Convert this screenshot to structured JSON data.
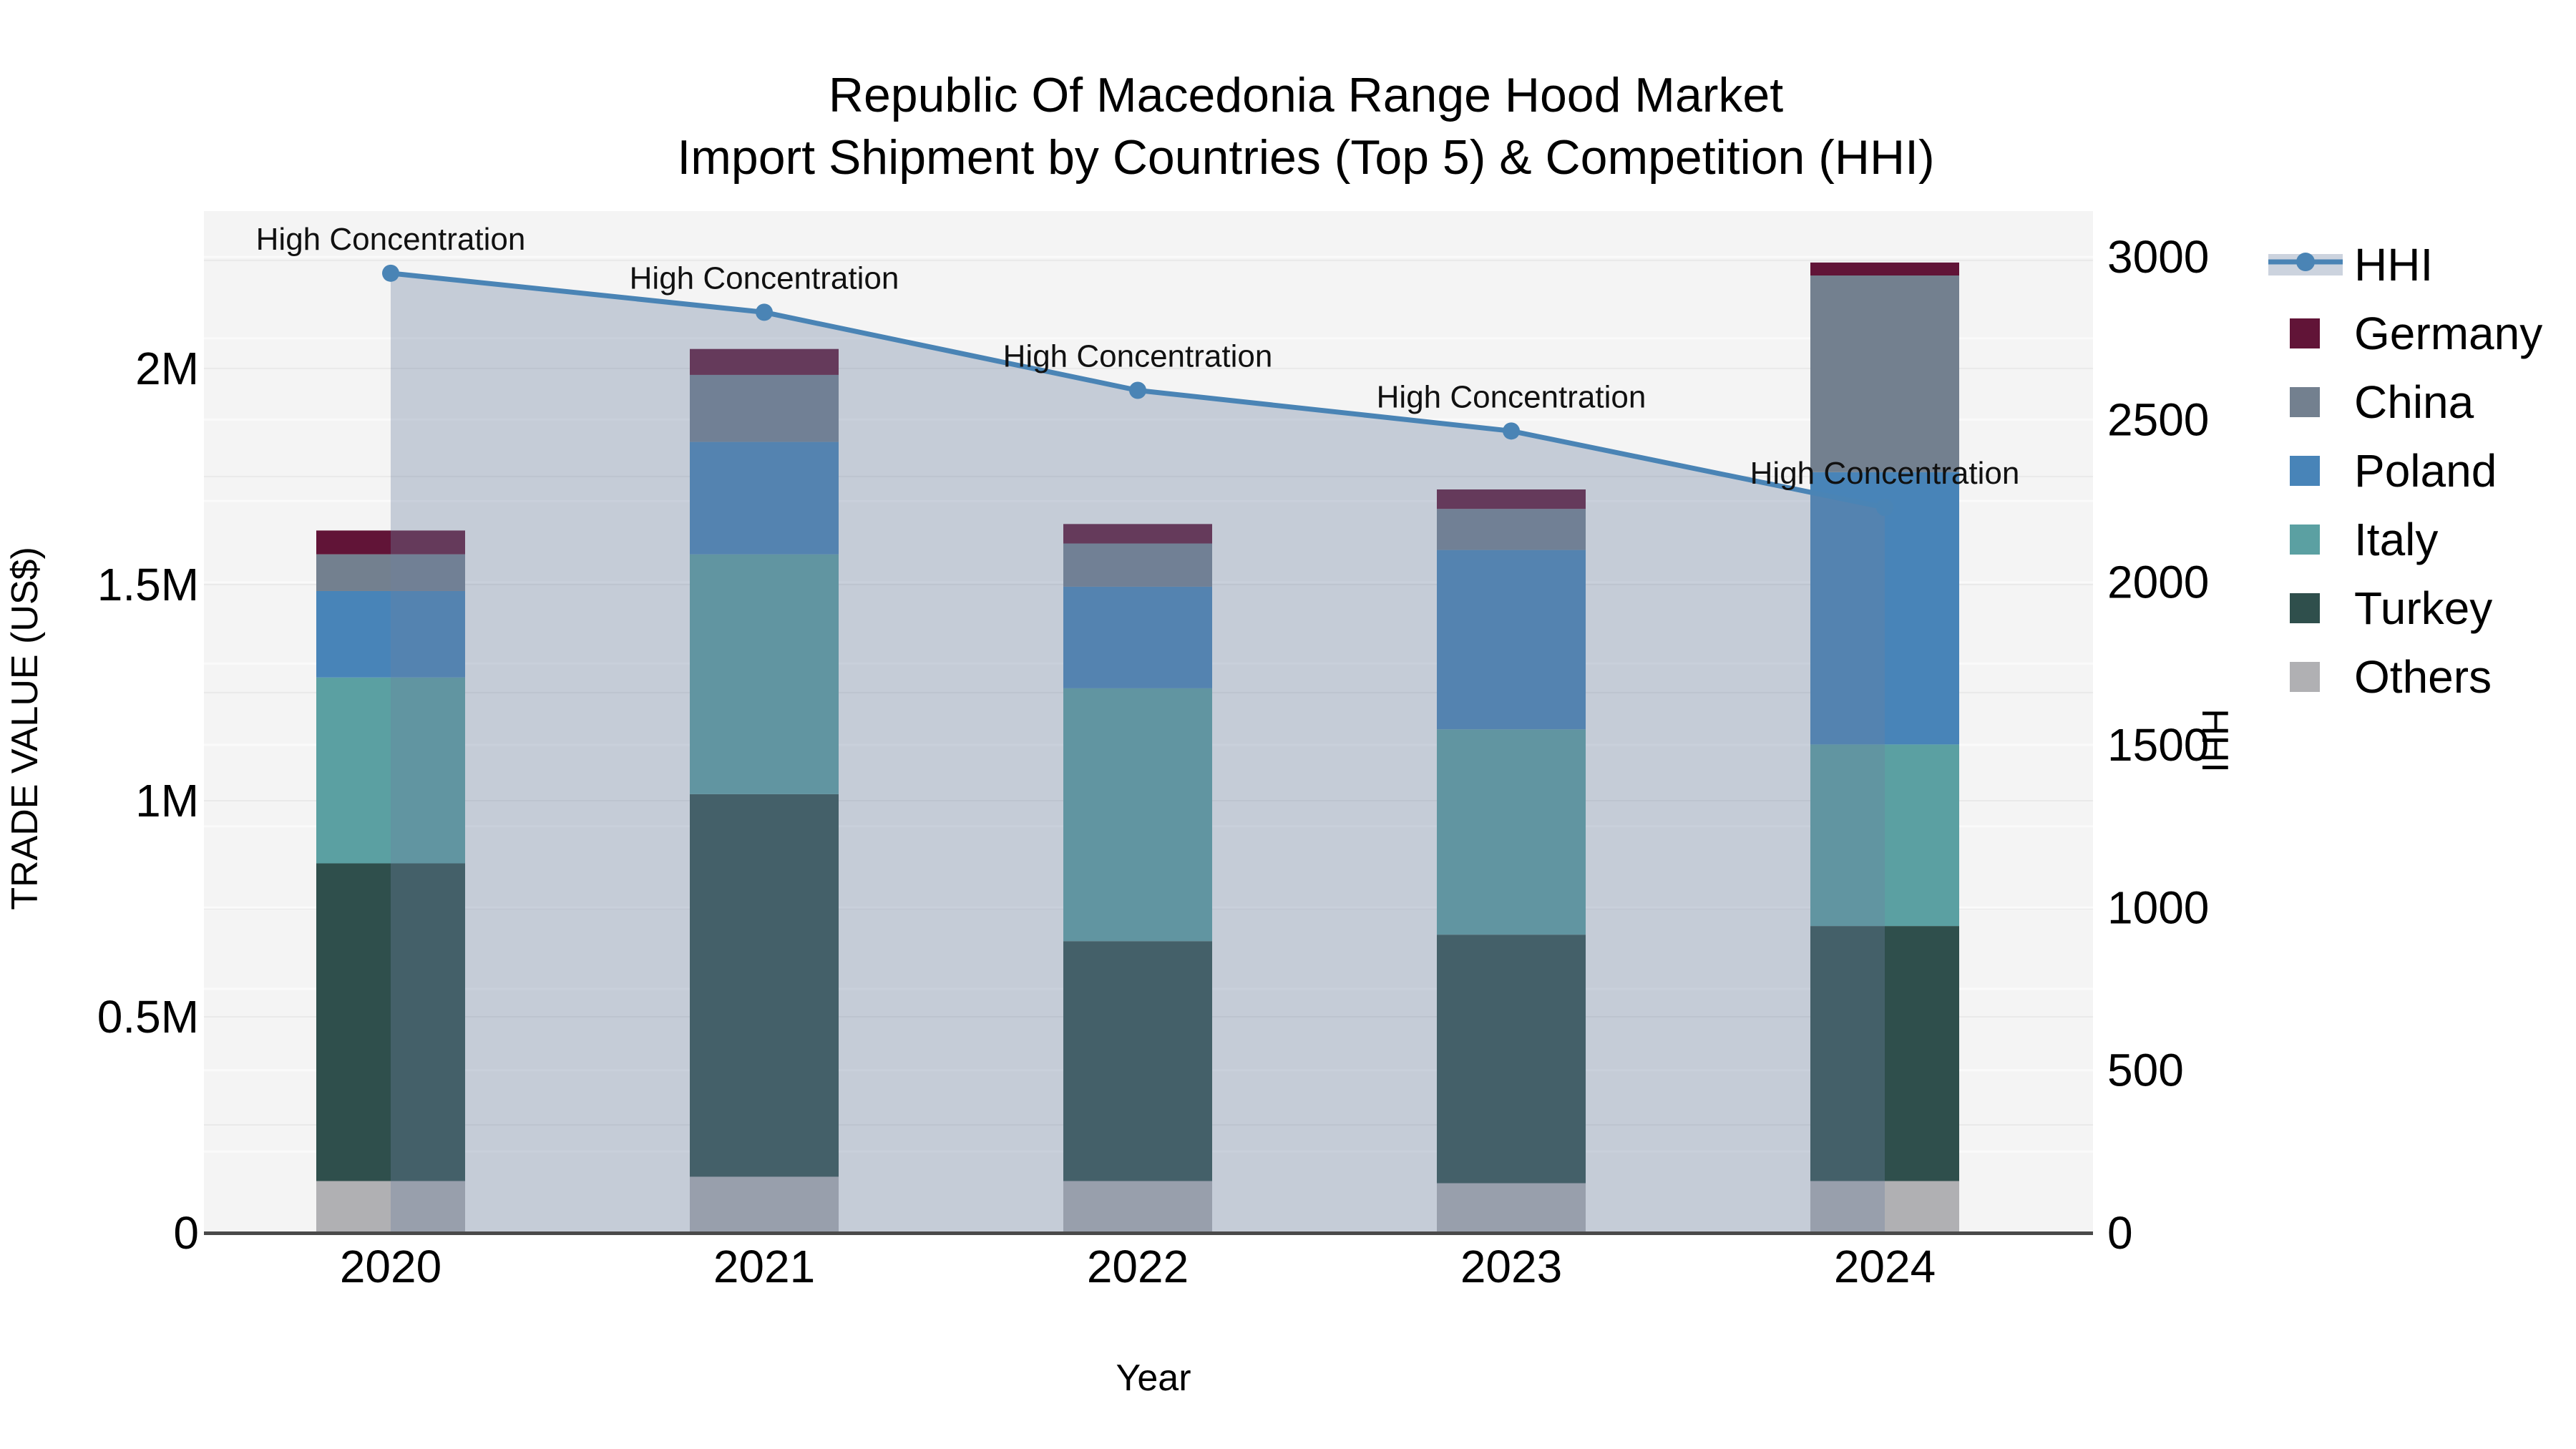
{
  "chart_data": {
    "type": "bar+line",
    "title": "Republic Of Macedonia Range Hood Market",
    "subtitle": "Import Shipment by Countries (Top 5) & Competition (HHI)",
    "xlabel": "Year",
    "ylabel_left": "TRADE VALUE (US$)",
    "ylabel_right": "HHI",
    "categories": [
      "2020",
      "2021",
      "2022",
      "2023",
      "2024"
    ],
    "stack_order_bottom_to_top": [
      "Others",
      "Turkey",
      "Italy",
      "Poland",
      "China",
      "Germany"
    ],
    "series": [
      {
        "name": "Germany",
        "color": "#611437",
        "values": [
          55000,
          60000,
          45000,
          45000,
          30000
        ]
      },
      {
        "name": "China",
        "color": "#73808f",
        "values": [
          85000,
          155000,
          100000,
          95000,
          455000
        ]
      },
      {
        "name": "Poland",
        "color": "#4884b8",
        "values": [
          200000,
          260000,
          235000,
          415000,
          630000
        ]
      },
      {
        "name": "Italy",
        "color": "#5ba0a2",
        "values": [
          430000,
          555000,
          585000,
          475000,
          420000
        ]
      },
      {
        "name": "Turkey",
        "color": "#2f4f4c",
        "values": [
          735000,
          885000,
          555000,
          575000,
          590000
        ]
      },
      {
        "name": "Others",
        "color": "#b0b0b3",
        "values": [
          120000,
          130000,
          120000,
          115000,
          120000
        ]
      }
    ],
    "bar_totals": [
      1625000,
      2045000,
      1640000,
      1720000,
      2245000
    ],
    "hhi": {
      "name": "HHI",
      "line_color": "#4a84b5",
      "fill_color": "rgba(110,130,160,0.35)",
      "values": [
        2950,
        2830,
        2590,
        2465,
        2230
      ],
      "annotations": [
        "High Concentration",
        "High Concentration",
        "High Concentration",
        "High Concentration",
        "High Concentration"
      ]
    },
    "axes": {
      "left": {
        "tick_values": [
          0,
          500000,
          1000000,
          1500000,
          2000000
        ],
        "tick_labels": [
          "0",
          "0.5M",
          "1M",
          "1.5M",
          "2M"
        ],
        "max": 2364000,
        "minor_grid_step": 250000
      },
      "right": {
        "tick_values": [
          0,
          500,
          1000,
          1500,
          2000,
          2500,
          3000
        ],
        "tick_labels": [
          "0",
          "500",
          "1000",
          "1500",
          "2000",
          "2500",
          "3000"
        ],
        "max": 3141,
        "minor_grid_step": 250
      },
      "x": {
        "labels": [
          "2020",
          "2021",
          "2022",
          "2023",
          "2024"
        ]
      }
    },
    "legend": [
      "HHI",
      "Germany",
      "China",
      "Poland",
      "Italy",
      "Turkey",
      "Others"
    ],
    "plot_background": "#f4f4f4",
    "grid_color_left": "#e9e9e9",
    "grid_color_right": "#fafafa",
    "axis_line_color": "#4a4a4a"
  }
}
